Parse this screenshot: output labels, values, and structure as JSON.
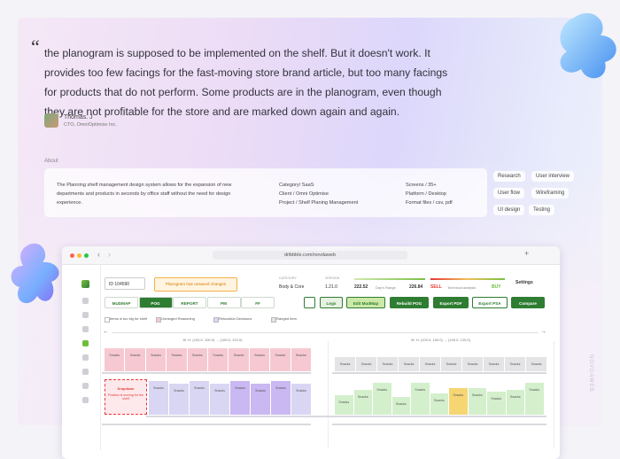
{
  "quote": {
    "text": "the planogram is supposed to be implemented on the shelf. But it doesn't work. It provides too few facings for the fast-moving store brand article, but too many facings for products that do not perform. Some products are in the planogram, even though they are not profitable for the store and are marked down again and again.",
    "author": "Thomas. J",
    "role": "CTO, OmniOptimise Inc."
  },
  "about": {
    "label": "About",
    "description": "The Planning shelf management design system allows for the expansion of new departments and products in seconds by office staff without the need for design experience.",
    "details": [
      [
        "Category/ SaaS",
        "Client / Omni Optimise",
        "Project / Shelf Planing Management"
      ],
      [
        "Screens / 35+",
        "Platform / Desktop",
        "Format files / csv, pdf"
      ]
    ],
    "tags": [
      "Research",
      "User interview",
      "User flow",
      "Wireframing",
      "UI design",
      "Testing"
    ]
  },
  "browser": {
    "url": "dribbble.com/novdaweb"
  },
  "app": {
    "id": "ID 104590",
    "warning": "Planogram has unsaved changes",
    "category_label": "CATEGORY",
    "category": "Body & Core",
    "version_label": "VERSION",
    "version": "1.21.0",
    "range_low": "222.52",
    "range_label": "Day's Range",
    "range_high": "226.84",
    "sell": "SELL",
    "analysis": "Technical analysis",
    "buy": "BUY",
    "settings": "Settings",
    "tabs": [
      "MUDMAP",
      "POG",
      "REPORT",
      "PM",
      "FF"
    ],
    "actions": [
      "Logs",
      "Edit MudMap",
      "Rebuild POG",
      "Export PDF",
      "Export PSA",
      "Compare"
    ],
    "legend": [
      "Items is too big for shelf",
      "Unranged Reasoning",
      "Relocation Decisions",
      "Ranged Item"
    ],
    "dimensions": [
      "W. H. (100.0, 100.0) → (100.0, 120.0)",
      "W. H. (100.0, 100.0) → (100.0, 120.0)"
    ],
    "error": {
      "title": "Dropdown",
      "text": "Position is moving for the shelf"
    },
    "shelves": [
      {
        "color": "#f6c9d2",
        "items": [
          "Snacks",
          "Snacks",
          "Snacks",
          "Snacks",
          "Snacks",
          "Snacks",
          "Snacks",
          "Snacks",
          "Snacks",
          "Snacks"
        ]
      },
      {
        "color": "#d9d6f3",
        "items": [
          "Snacks",
          "Snacks",
          "Snacks",
          "Snacks",
          "Snacks",
          "Snacks",
          "Snacks",
          "Snacks"
        ]
      },
      {
        "color": "#e4e4e7",
        "items": [
          "Snacks",
          "Snacks",
          "Snacks",
          "Snacks",
          "Snacks",
          "Snacks",
          "Snacks",
          "Snacks",
          "Snacks",
          "Snacks"
        ]
      },
      {
        "color": "#d4efcc",
        "items": [
          "Snacks",
          "Snacks",
          "Snacks",
          "Snacks",
          "Snacks",
          "Snacks",
          "Snacks",
          "Snacks",
          "Snacks",
          "Snacks",
          "Snacks"
        ]
      }
    ]
  },
  "watermark": "NOVDAWEB"
}
